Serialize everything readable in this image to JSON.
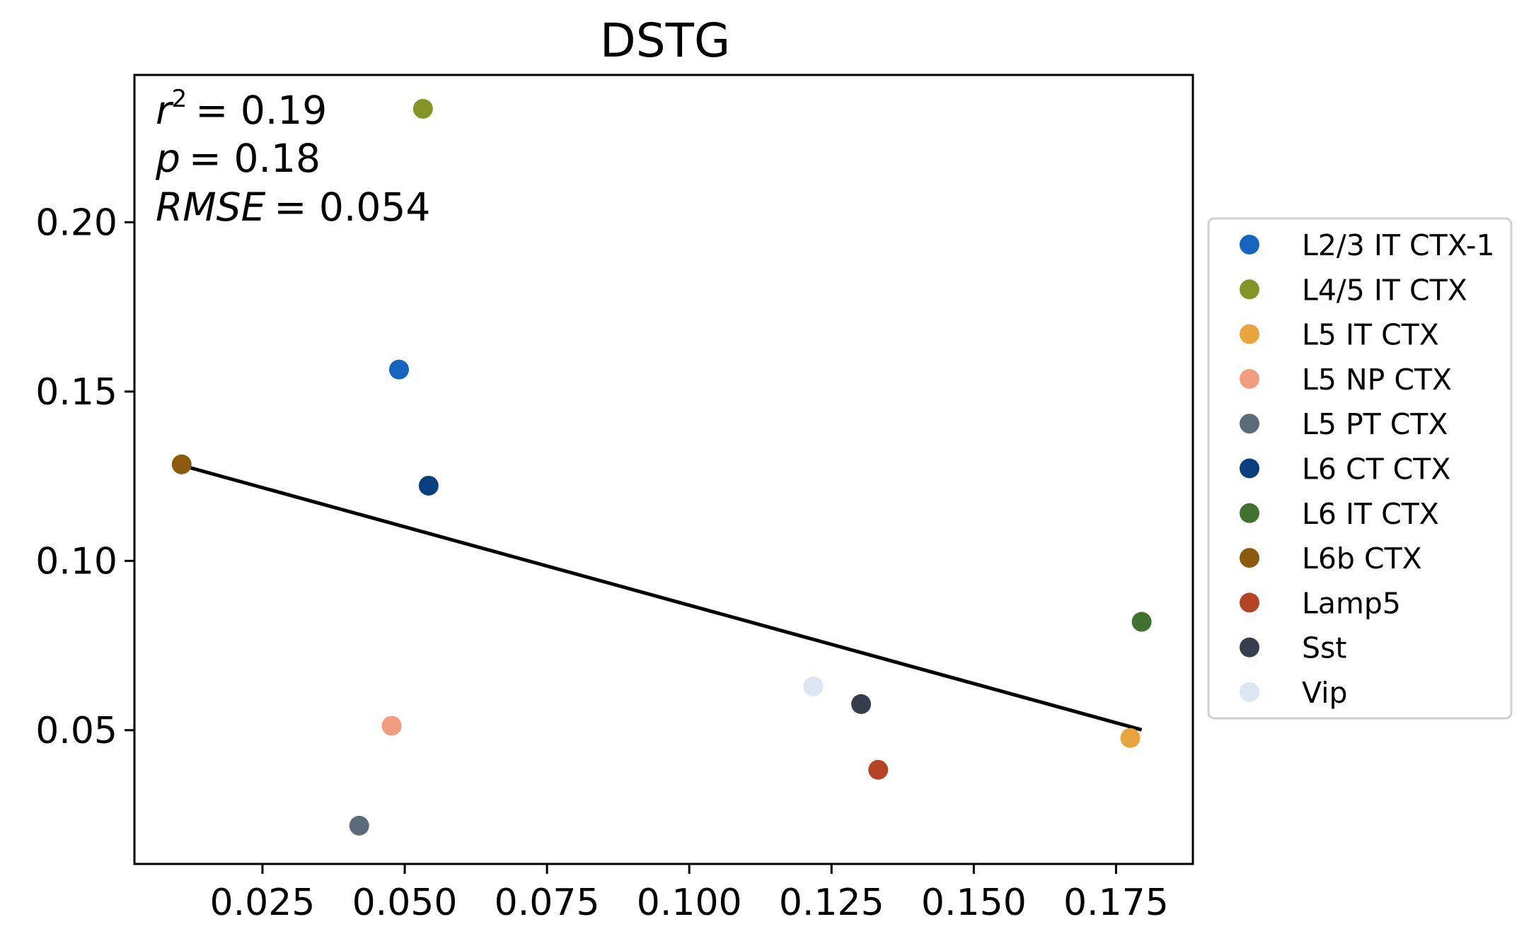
{
  "chart_data": {
    "type": "scatter",
    "title": "DSTG",
    "xlabel": "",
    "ylabel": "",
    "xlim": [
      0.0025,
      0.1885
    ],
    "ylim": [
      0.0105,
      0.2435
    ],
    "x_ticks": [
      0.025,
      0.05,
      0.075,
      0.1,
      0.125,
      0.15,
      0.175
    ],
    "x_tick_labels": [
      "0.025",
      "0.050",
      "0.075",
      "0.100",
      "0.125",
      "0.150",
      "0.175"
    ],
    "y_ticks": [
      0.05,
      0.1,
      0.15,
      0.2
    ],
    "y_tick_labels": [
      "0.05",
      "0.10",
      "0.15",
      "0.20"
    ],
    "grid": false,
    "legend_placement": "right-outside",
    "series": [
      {
        "name": "L2/3 IT CTX-1",
        "color": "#1565c0",
        "x": 0.049,
        "y": 0.1565
      },
      {
        "name": "L4/5 IT CTX",
        "color": "#849426",
        "x": 0.0532,
        "y": 0.2335
      },
      {
        "name": "L5 IT CTX",
        "color": "#e8a43f",
        "x": 0.1775,
        "y": 0.0477
      },
      {
        "name": "L5 NP CTX",
        "color": "#f29c80",
        "x": 0.0477,
        "y": 0.0513
      },
      {
        "name": "L5 PT CTX",
        "color": "#5c6b7c",
        "x": 0.042,
        "y": 0.0218
      },
      {
        "name": "L6 CT CTX",
        "color": "#0a3f7f",
        "x": 0.0542,
        "y": 0.1222
      },
      {
        "name": "L6 IT CTX",
        "color": "#41712f",
        "x": 0.1795,
        "y": 0.082
      },
      {
        "name": "L6b CTX",
        "color": "#8b5a0f",
        "x": 0.0108,
        "y": 0.1285
      },
      {
        "name": "Lamp5",
        "color": "#b54427",
        "x": 0.1332,
        "y": 0.0383
      },
      {
        "name": "Sst",
        "color": "#363d4c",
        "x": 0.1302,
        "y": 0.0577
      },
      {
        "name": "Vip",
        "color": "#dce6f3",
        "x": 0.1218,
        "y": 0.0629
      }
    ],
    "fit_line": {
      "x": [
        0.0108,
        0.1795
      ],
      "y": [
        0.1282,
        0.0501
      ],
      "color": "#000000"
    },
    "annotations": {
      "r2": {
        "label": "r",
        "sup": "2",
        "value": "= 0.19"
      },
      "p": {
        "label": "p",
        "value": "= 0.18"
      },
      "rmse": {
        "label": "RMSE",
        "value": "= 0.054"
      }
    }
  }
}
